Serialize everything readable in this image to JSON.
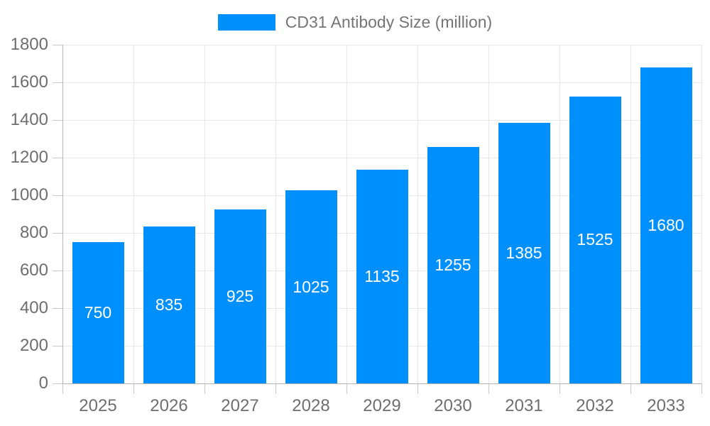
{
  "chart_data": {
    "type": "bar",
    "title": "",
    "legend": {
      "label": "CD31 Antibody Size (million)",
      "position": "top"
    },
    "categories": [
      "2025",
      "2026",
      "2027",
      "2028",
      "2029",
      "2030",
      "2031",
      "2032",
      "2033"
    ],
    "series": [
      {
        "name": "CD31 Antibody Size (million)",
        "values": [
          750,
          835,
          925,
          1025,
          1135,
          1255,
          1385,
          1525,
          1680
        ]
      }
    ],
    "data_labels": [
      "750",
      "835",
      "925",
      "1025",
      "1135",
      "1255",
      "1385",
      "1525",
      "1680"
    ],
    "xlabel": "",
    "ylabel": "",
    "ylim": [
      0,
      1800
    ],
    "ytick_step": 200,
    "yticks": [
      "0",
      "200",
      "400",
      "600",
      "800",
      "1000",
      "1200",
      "1400",
      "1600",
      "1800"
    ],
    "grid": "horizontal-and-vertical",
    "colors": {
      "bar": "#008FFB",
      "bar_value_text": "#ffffff",
      "gridline": "#e7e7e7",
      "axis_line": "#b5b5b5",
      "tick": "#c9c9c9",
      "axis_text": "#6e6e6e",
      "legend_text": "#757575",
      "background": "#ffffff"
    }
  }
}
